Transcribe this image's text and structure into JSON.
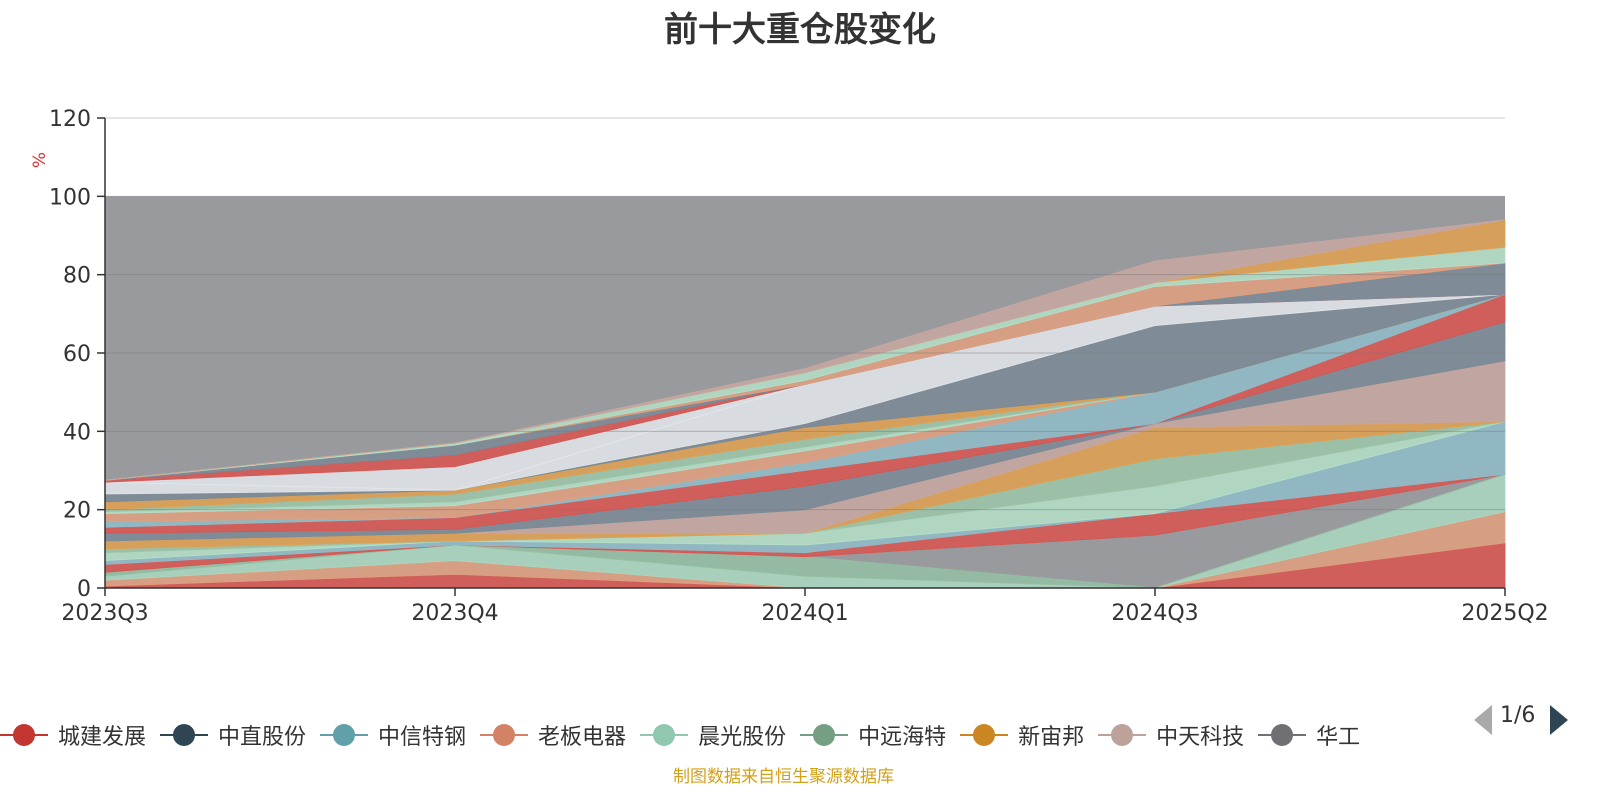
{
  "chart_data": {
    "type": "area",
    "title": "前十大重仓股变化",
    "ylabel": "%",
    "ylim": [
      0,
      120
    ],
    "yticks": [
      0,
      20,
      40,
      60,
      80,
      100,
      120
    ],
    "categories": [
      "2023Q3",
      "2023Q4",
      "2024Q1",
      "2024Q3",
      "2025Q2"
    ],
    "grid": true,
    "background_band": {
      "from": 0,
      "to": 100,
      "color": "#999a9e"
    },
    "bands": [
      {
        "bottom": [
          0,
          0,
          0,
          0,
          0
        ],
        "top": [
          0.5,
          3.5,
          0,
          0,
          11.5
        ],
        "color": "#d9534f"
      },
      {
        "bottom": [
          0.5,
          3.5,
          0,
          0,
          11.5
        ],
        "top": [
          2,
          7,
          0,
          0,
          19.5
        ],
        "color": "#e0a07f"
      },
      {
        "bottom": [
          2,
          7,
          0,
          0,
          19.5
        ],
        "top": [
          3,
          11,
          3,
          0,
          29
        ],
        "color": "#a9d8c0"
      },
      {
        "bottom": [
          3,
          11,
          3,
          0,
          29
        ],
        "top": [
          4,
          11,
          8,
          0,
          29
        ],
        "color": "#94bfa3"
      },
      {
        "bottom": [
          4,
          11,
          8,
          13.5,
          29
        ],
        "top": [
          6,
          11,
          9,
          19,
          29
        ],
        "color": "#d9534f"
      },
      {
        "bottom": [
          6,
          11,
          9,
          19,
          29
        ],
        "top": [
          7,
          12,
          11,
          19,
          42.5
        ],
        "color": "#8fbcc8"
      },
      {
        "bottom": [
          7,
          12,
          11,
          19,
          42.5
        ],
        "top": [
          9,
          12,
          14,
          26,
          42.5
        ],
        "color": "#b4e0c8"
      },
      {
        "bottom": [
          9,
          12,
          14,
          26,
          42.5
        ],
        "top": [
          10,
          12,
          14,
          33,
          42.5
        ],
        "color": "#9bc5a8"
      },
      {
        "bottom": [
          10,
          12,
          14,
          33,
          42.5
        ],
        "top": [
          12,
          14,
          14,
          41,
          42.5
        ],
        "color": "#e0a050"
      },
      {
        "bottom": [
          12,
          14,
          14,
          41,
          42.5
        ],
        "top": [
          12,
          14,
          20,
          42,
          58
        ],
        "color": "#c8a7a0"
      },
      {
        "bottom": [
          12,
          14,
          20,
          42,
          58
        ],
        "top": [
          14,
          15,
          26,
          42,
          68
        ],
        "color": "#7a8a96"
      },
      {
        "bottom": [
          14,
          15,
          26,
          42,
          68
        ],
        "top": [
          15.5,
          18,
          30,
          42,
          75
        ],
        "color": "#d9534f"
      },
      {
        "bottom": [
          15.5,
          18,
          30,
          42,
          75
        ],
        "top": [
          17,
          18,
          32,
          50,
          75
        ],
        "color": "#8fbcc8"
      },
      {
        "bottom": [
          17,
          18,
          32,
          50,
          75
        ],
        "top": [
          19,
          21,
          35,
          50,
          75
        ],
        "color": "#e0a07f"
      },
      {
        "bottom": [
          19,
          21,
          35,
          50,
          75
        ],
        "top": [
          19.5,
          22,
          36,
          50,
          75
        ],
        "color": "#b4e0c8"
      },
      {
        "bottom": [
          19.5,
          22,
          36,
          50,
          75
        ],
        "top": [
          20,
          24,
          38,
          50,
          75
        ],
        "color": "#9bc5a8"
      },
      {
        "bottom": [
          20,
          24,
          38,
          50,
          75
        ],
        "top": [
          22,
          25,
          41,
          50,
          75
        ],
        "color": "#e0a050"
      },
      {
        "bottom": [
          22,
          25,
          41,
          50,
          75
        ],
        "top": [
          24,
          25,
          42,
          67,
          75
        ],
        "color": "#7a8a96"
      },
      {
        "bottom": [
          24,
          25,
          42,
          67,
          75
        ],
        "top": [
          27,
          25,
          52,
          72,
          75
        ],
        "color": "#e3e6ea"
      },
      {
        "bottom": [
          27,
          25,
          52,
          72,
          75
        ],
        "top": [
          27,
          31,
          52,
          72,
          75
        ],
        "color": "#e3e6ea"
      },
      {
        "bottom": [
          27,
          31,
          52,
          72,
          75
        ],
        "top": [
          27.5,
          34,
          52,
          72,
          75
        ],
        "color": "#d9534f"
      },
      {
        "bottom": [
          27.5,
          34,
          52,
          72,
          75
        ],
        "top": [
          27.5,
          36.5,
          52,
          72,
          83
        ],
        "color": "#7a8a96"
      },
      {
        "bottom": [
          27.5,
          36.5,
          52,
          72,
          83
        ],
        "top": [
          27.5,
          36.5,
          53,
          77,
          83
        ],
        "color": "#e0a07f"
      },
      {
        "bottom": [
          27.5,
          36.5,
          53,
          77,
          83
        ],
        "top": [
          27.5,
          37,
          55,
          78,
          87
        ],
        "color": "#b4e0c8"
      },
      {
        "bottom": [
          27.5,
          37,
          55,
          78,
          87
        ],
        "top": [
          27.5,
          37,
          55,
          78,
          94
        ],
        "color": "#e0a050"
      },
      {
        "bottom": [
          27.5,
          37,
          55,
          78,
          94
        ],
        "top": [
          27.5,
          37,
          56,
          83.5,
          94
        ],
        "color": "#c8a7a0"
      }
    ]
  },
  "legend": {
    "items": [
      {
        "label": "城建发展",
        "color": "#c23531"
      },
      {
        "label": "中直股份",
        "color": "#2f4554"
      },
      {
        "label": "中信特钢",
        "color": "#61a0a8"
      },
      {
        "label": "老板电器",
        "color": "#d48265"
      },
      {
        "label": "晨光股份",
        "color": "#91c7ae"
      },
      {
        "label": "中远海特",
        "color": "#749f83"
      },
      {
        "label": "新宙邦",
        "color": "#ca8622"
      },
      {
        "label": "中天科技",
        "color": "#bda29a"
      },
      {
        "label": "华工",
        "color": "#6e7074"
      }
    ],
    "page": "1/6"
  },
  "source": "制图数据来自恒生聚源数据库"
}
